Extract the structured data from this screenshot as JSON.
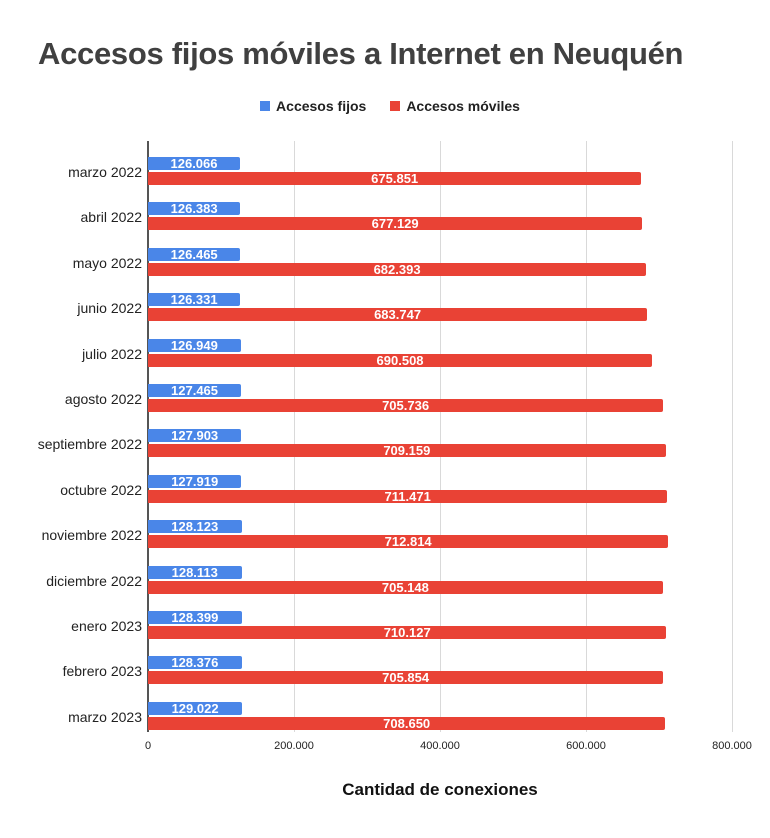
{
  "title": "Accesos fijos móviles a Internet en Neuquén",
  "legend": [
    {
      "label": "Accesos fijos",
      "color": "#4a86e8"
    },
    {
      "label": "Accesos móviles",
      "color": "#e94235"
    }
  ],
  "x_ticks": [
    "0",
    "200.000",
    "400.000",
    "600.000",
    "800.000"
  ],
  "x_axis_label": "Cantidad de conexiones",
  "chart_data": {
    "type": "bar",
    "orientation": "horizontal",
    "title": "Accesos fijos móviles a Internet en Neuquén",
    "xlabel": "Cantidad de conexiones",
    "ylabel": "",
    "xlim": [
      0,
      800000
    ],
    "grid": true,
    "legend_position": "top",
    "categories": [
      "marzo 2022",
      "abril 2022",
      "mayo 2022",
      "junio 2022",
      "julio 2022",
      "agosto 2022",
      "septiembre 2022",
      "octubre 2022",
      "noviembre 2022",
      "diciembre 2022",
      "enero 2023",
      "febrero 2023",
      "marzo 2023"
    ],
    "series": [
      {
        "name": "Accesos fijos",
        "color": "#4a86e8",
        "values": [
          126066,
          126383,
          126465,
          126331,
          126949,
          127465,
          127903,
          127919,
          128123,
          128113,
          128399,
          128376,
          129022
        ],
        "labels": [
          "126.066",
          "126.383",
          "126.465",
          "126.331",
          "126.949",
          "127.465",
          "127.903",
          "127.919",
          "128.123",
          "128.113",
          "128.399",
          "128.376",
          "129.022"
        ]
      },
      {
        "name": "Accesos móviles",
        "color": "#e94235",
        "values": [
          675851,
          677129,
          682393,
          683747,
          690508,
          705736,
          709159,
          711471,
          712814,
          705148,
          710127,
          705854,
          708650
        ],
        "labels": [
          "675.851",
          "677.129",
          "682.393",
          "683.747",
          "690.508",
          "705.736",
          "709.159",
          "711.471",
          "712.814",
          "705.148",
          "710.127",
          "705.854",
          "708.650"
        ]
      }
    ]
  }
}
